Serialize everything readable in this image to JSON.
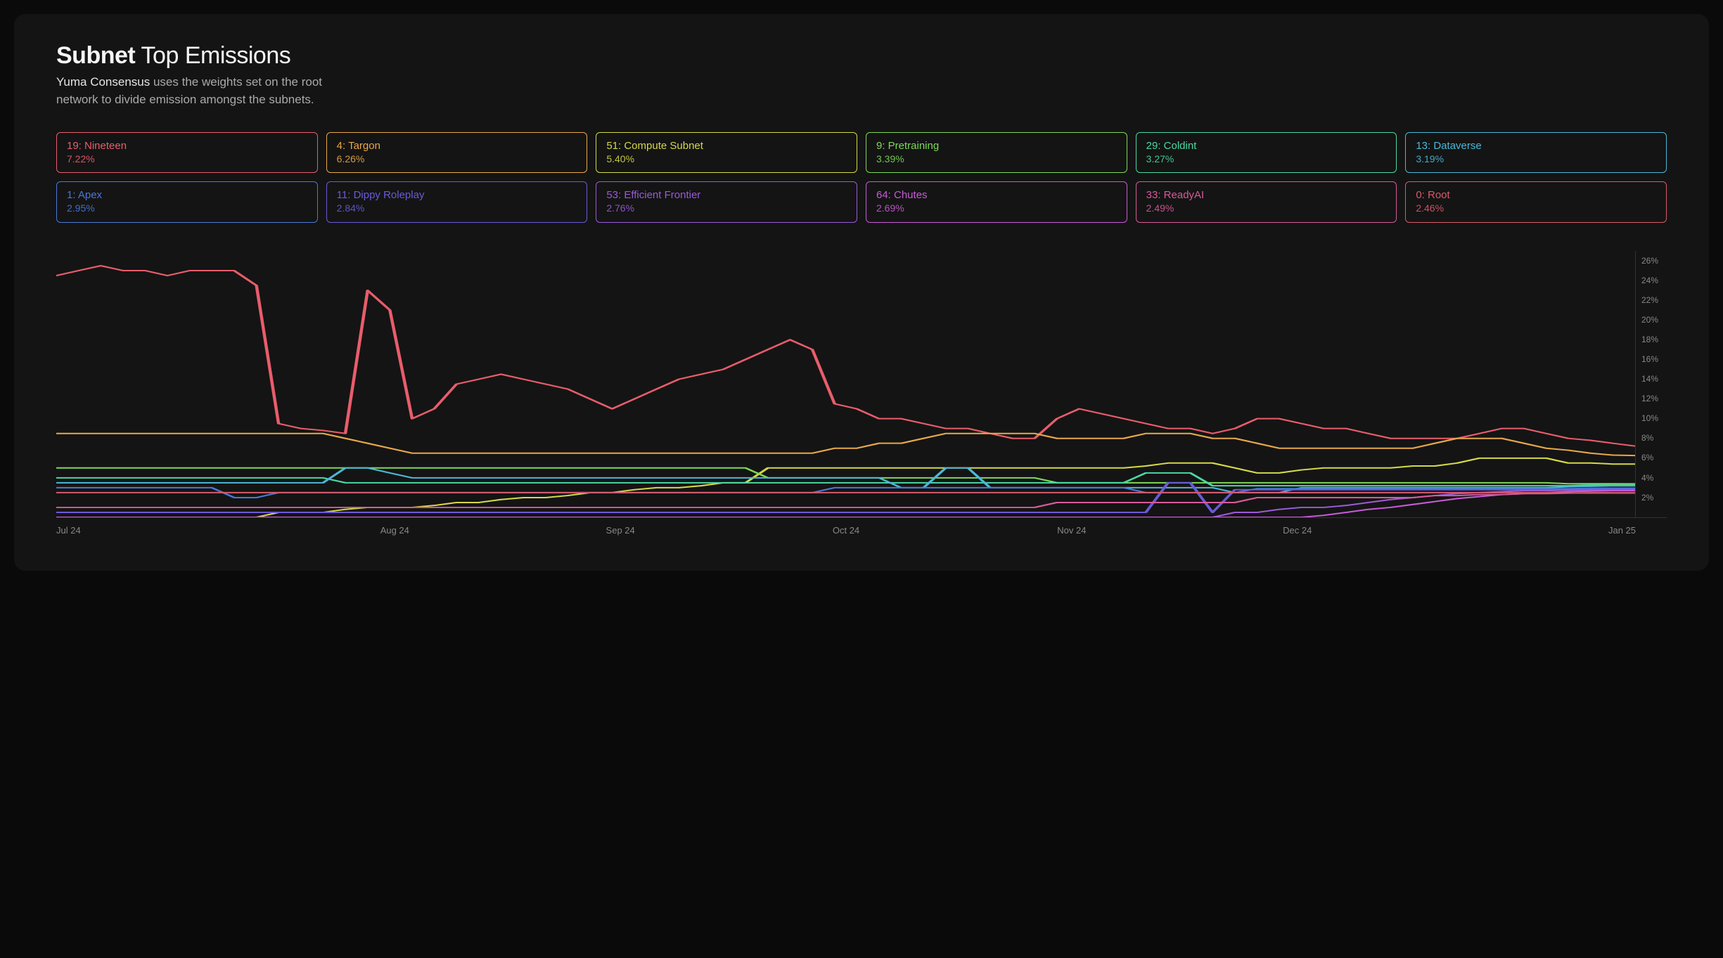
{
  "header": {
    "title_bold": "Subnet",
    "title_light": " Top Emissions",
    "subtitle_strong": "Yuma Consensus",
    "subtitle_rest": " uses the weights set on the root network to divide emission amongst the subnets."
  },
  "chart": {
    "type": "line",
    "background_color": "#141414",
    "ylim": [
      0,
      27
    ],
    "y_ticks": [
      "26%",
      "24%",
      "22%",
      "20%",
      "18%",
      "16%",
      "14%",
      "12%",
      "10%",
      "8%",
      "6%",
      "4%",
      "2%"
    ],
    "y_tick_values": [
      26,
      24,
      22,
      20,
      18,
      16,
      14,
      12,
      10,
      8,
      6,
      4,
      2
    ],
    "x_ticks": [
      "Jul 24",
      "Aug 24",
      "Sep 24",
      "Oct 24",
      "Nov 24",
      "Dec 24",
      "Jan 25"
    ],
    "grid_color": "#333333",
    "series": [
      {
        "id": "19",
        "name": "19: Nineteen",
        "percent": "7.22%",
        "color": "#e85d6b",
        "values": [
          24.5,
          25,
          25.5,
          25,
          25,
          24.5,
          25,
          25,
          25,
          23.5,
          9.5,
          9,
          8.8,
          8.5,
          23,
          21,
          10,
          11,
          13.5,
          14,
          14.5,
          14,
          13.5,
          13,
          12,
          11,
          12,
          13,
          14,
          14.5,
          15,
          16,
          17,
          18,
          17,
          11.5,
          11,
          10,
          10,
          9.5,
          9,
          9,
          8.5,
          8,
          8,
          10,
          11,
          10.5,
          10,
          9.5,
          9,
          9,
          8.5,
          9,
          10,
          10,
          9.5,
          9,
          9,
          8.5,
          8,
          8,
          8,
          8,
          8.5,
          9,
          9,
          8.5,
          8,
          7.8,
          7.5,
          7.22
        ]
      },
      {
        "id": "4",
        "name": "4: Targon",
        "percent": "6.26%",
        "color": "#e8a84a",
        "values": [
          8.5,
          8.5,
          8.5,
          8.5,
          8.5,
          8.5,
          8.5,
          8.5,
          8.5,
          8.5,
          8.5,
          8.5,
          8.5,
          8,
          7.5,
          7,
          6.5,
          6.5,
          6.5,
          6.5,
          6.5,
          6.5,
          6.5,
          6.5,
          6.5,
          6.5,
          6.5,
          6.5,
          6.5,
          6.5,
          6.5,
          6.5,
          6.5,
          6.5,
          6.5,
          7,
          7,
          7.5,
          7.5,
          8,
          8.5,
          8.5,
          8.5,
          8.5,
          8.5,
          8,
          8,
          8,
          8,
          8.5,
          8.5,
          8.5,
          8,
          8,
          7.5,
          7,
          7,
          7,
          7,
          7,
          7,
          7,
          7.5,
          8,
          8,
          8,
          7.5,
          7,
          6.8,
          6.5,
          6.3,
          6.26
        ]
      },
      {
        "id": "51",
        "name": "51: Compute Subnet",
        "percent": "5.40%",
        "color": "#d4d848",
        "values": [
          0,
          0,
          0,
          0,
          0,
          0,
          0,
          0,
          0,
          0,
          0.5,
          0.5,
          0.5,
          0.8,
          1,
          1,
          1,
          1.2,
          1.5,
          1.5,
          1.8,
          2,
          2,
          2.2,
          2.5,
          2.5,
          2.8,
          3,
          3,
          3.2,
          3.5,
          3.5,
          5,
          5,
          5,
          5,
          5,
          5,
          5,
          5,
          5,
          5,
          5,
          5,
          5,
          5,
          5,
          5,
          5,
          5.2,
          5.5,
          5.5,
          5.5,
          5,
          4.5,
          4.5,
          4.8,
          5,
          5,
          5,
          5,
          5.2,
          5.2,
          5.5,
          6,
          6,
          6,
          6,
          5.5,
          5.5,
          5.4,
          5.4
        ]
      },
      {
        "id": "9",
        "name": "9: Pretraining",
        "percent": "3.39%",
        "color": "#7dd858",
        "values": [
          5,
          5,
          5,
          5,
          5,
          5,
          5,
          5,
          5,
          5,
          5,
          5,
          5,
          5,
          5,
          5,
          5,
          5,
          5,
          5,
          5,
          5,
          5,
          5,
          5,
          5,
          5,
          5,
          5,
          5,
          5,
          5,
          4,
          4,
          4,
          4,
          4,
          4,
          4,
          4,
          4,
          4,
          4,
          4,
          4,
          3.5,
          3.5,
          3.5,
          3.5,
          3.5,
          3.5,
          3.5,
          3.5,
          3.5,
          3.5,
          3.5,
          3.5,
          3.5,
          3.5,
          3.5,
          3.5,
          3.5,
          3.5,
          3.5,
          3.5,
          3.5,
          3.5,
          3.5,
          3.4,
          3.4,
          3.4,
          3.39
        ]
      },
      {
        "id": "29",
        "name": "29: Coldint",
        "percent": "3.27%",
        "color": "#4ad8a4",
        "values": [
          4,
          4,
          4,
          4,
          4,
          4,
          4,
          4,
          4,
          4,
          4,
          4,
          4,
          3.5,
          3.5,
          3.5,
          3.5,
          3.5,
          3.5,
          3.5,
          3.5,
          3.5,
          3.5,
          3.5,
          3.5,
          3.5,
          3.5,
          3.5,
          3.5,
          3.5,
          3.5,
          3.5,
          3.5,
          3.5,
          3.5,
          3.5,
          3.5,
          3.5,
          3.5,
          3.5,
          3.5,
          3.5,
          3.5,
          3.5,
          3.5,
          3.5,
          3.5,
          3.5,
          3.5,
          4.5,
          4.5,
          4.5,
          3.2,
          3.2,
          3.2,
          3.2,
          3.2,
          3.2,
          3.2,
          3.2,
          3.2,
          3.2,
          3.2,
          3.2,
          3.2,
          3.2,
          3.2,
          3.2,
          3.2,
          3.27,
          3.27,
          3.27
        ]
      },
      {
        "id": "13",
        "name": "13: Dataverse",
        "percent": "3.19%",
        "color": "#4ab8d8",
        "values": [
          3.5,
          3.5,
          3.5,
          3.5,
          3.5,
          3.5,
          3.5,
          3.5,
          3.5,
          3.5,
          3.5,
          3.5,
          3.5,
          5,
          5,
          4.5,
          4,
          4,
          4,
          4,
          4,
          4,
          4,
          4,
          4,
          4,
          4,
          4,
          4,
          4,
          4,
          4,
          4,
          4,
          4,
          4,
          4,
          4,
          3,
          3,
          5,
          5,
          3,
          3,
          3,
          3,
          3,
          3,
          3,
          3,
          3,
          3,
          3,
          2.5,
          2.5,
          2.5,
          3,
          3,
          3,
          3,
          3,
          3,
          3,
          3,
          3,
          3,
          3,
          3,
          3.1,
          3.15,
          3.19,
          3.19
        ]
      },
      {
        "id": "1",
        "name": "1: Apex",
        "percent": "2.95%",
        "color": "#4a78d8",
        "values": [
          3,
          3,
          3,
          3,
          3,
          3,
          3,
          3,
          2,
          2,
          2.5,
          2.5,
          2.5,
          2.5,
          2.5,
          2.5,
          2.5,
          2.5,
          2.5,
          2.5,
          2.5,
          2.5,
          2.5,
          2.5,
          2.5,
          2.5,
          2.5,
          2.5,
          2.5,
          2.5,
          2.5,
          2.5,
          2.5,
          2.5,
          2.5,
          3,
          3,
          3,
          3,
          3,
          3,
          3,
          3,
          3,
          3,
          3,
          3,
          3,
          3,
          2.5,
          2.5,
          2.5,
          2.5,
          2.5,
          2.9,
          2.9,
          2.9,
          2.9,
          2.9,
          2.9,
          2.9,
          2.9,
          2.9,
          2.9,
          2.9,
          2.9,
          2.9,
          2.9,
          2.9,
          2.95,
          2.95,
          2.95
        ]
      },
      {
        "id": "11",
        "name": "11: Dippy Roleplay",
        "percent": "2.84%",
        "color": "#6a5ad8",
        "values": [
          0.5,
          0.5,
          0.5,
          0.5,
          0.5,
          0.5,
          0.5,
          0.5,
          0.5,
          0.5,
          0.5,
          0.5,
          0.5,
          0.5,
          0.5,
          0.5,
          0.5,
          0.5,
          0.5,
          0.5,
          0.5,
          0.5,
          0.5,
          0.5,
          0.5,
          0.5,
          0.5,
          0.5,
          0.5,
          0.5,
          0.5,
          0.5,
          0.5,
          0.5,
          0.5,
          0.5,
          0.5,
          0.5,
          0.5,
          0.5,
          0.5,
          0.5,
          0.5,
          0.5,
          0.5,
          0.5,
          0.5,
          0.5,
          0.5,
          0.5,
          3.5,
          3.5,
          0.5,
          2.8,
          2.8,
          2.8,
          2.8,
          2.8,
          2.8,
          2.8,
          2.8,
          2.8,
          2.8,
          2.8,
          2.8,
          2.8,
          2.8,
          2.8,
          2.8,
          2.84,
          2.84,
          2.84
        ]
      },
      {
        "id": "53",
        "name": "53: Efficient Frontier",
        "percent": "2.76%",
        "color": "#9a5ad8",
        "values": [
          0,
          0,
          0,
          0,
          0,
          0,
          0,
          0,
          0,
          0,
          0,
          0,
          0,
          0,
          0,
          0,
          0,
          0,
          0,
          0,
          0,
          0,
          0,
          0,
          0,
          0,
          0,
          0,
          0,
          0,
          0,
          0,
          0,
          0,
          0,
          0,
          0,
          0,
          0,
          0,
          0,
          0,
          0,
          0,
          0,
          0,
          0,
          0,
          0,
          0,
          0,
          0,
          0,
          0.5,
          0.5,
          0.8,
          1,
          1,
          1.2,
          1.5,
          1.8,
          2,
          2.2,
          2.4,
          2.5,
          2.6,
          2.7,
          2.7,
          2.75,
          2.76,
          2.76,
          2.76
        ]
      },
      {
        "id": "64",
        "name": "64: Chutes",
        "percent": "2.69%",
        "color": "#c85ad8",
        "values": [
          0,
          0,
          0,
          0,
          0,
          0,
          0,
          0,
          0,
          0,
          0,
          0,
          0,
          0,
          0,
          0,
          0,
          0,
          0,
          0,
          0,
          0,
          0,
          0,
          0,
          0,
          0,
          0,
          0,
          0,
          0,
          0,
          0,
          0,
          0,
          0,
          0,
          0,
          0,
          0,
          0,
          0,
          0,
          0,
          0,
          0,
          0,
          0,
          0,
          0,
          0,
          0,
          0,
          0,
          0,
          0,
          0,
          0.2,
          0.5,
          0.8,
          1,
          1.3,
          1.6,
          1.9,
          2.1,
          2.3,
          2.4,
          2.5,
          2.6,
          2.65,
          2.69,
          2.69
        ]
      },
      {
        "id": "33",
        "name": "33: ReadyAI",
        "percent": "2.49%",
        "color": "#d85a9a",
        "values": [
          1,
          1,
          1,
          1,
          1,
          1,
          1,
          1,
          1,
          1,
          1,
          1,
          1,
          1,
          1,
          1,
          1,
          1,
          1,
          1,
          1,
          1,
          1,
          1,
          1,
          1,
          1,
          1,
          1,
          1,
          1,
          1,
          1,
          1,
          1,
          1,
          1,
          1,
          1,
          1,
          1,
          1,
          1,
          1,
          1,
          1.5,
          1.5,
          1.5,
          1.5,
          1.5,
          1.5,
          1.5,
          1.5,
          1.5,
          2,
          2,
          2,
          2,
          2,
          2,
          2,
          2,
          2.2,
          2.2,
          2.3,
          2.3,
          2.4,
          2.4,
          2.45,
          2.49,
          2.49,
          2.49
        ]
      },
      {
        "id": "0",
        "name": "0: Root",
        "percent": "2.46%",
        "color": "#d85a6a",
        "values": [
          2.5,
          2.5,
          2.5,
          2.5,
          2.5,
          2.5,
          2.5,
          2.5,
          2.5,
          2.5,
          2.5,
          2.5,
          2.5,
          2.5,
          2.5,
          2.5,
          2.5,
          2.5,
          2.5,
          2.5,
          2.5,
          2.5,
          2.5,
          2.5,
          2.5,
          2.5,
          2.5,
          2.5,
          2.5,
          2.5,
          2.5,
          2.5,
          2.5,
          2.5,
          2.5,
          2.5,
          2.5,
          2.5,
          2.5,
          2.5,
          2.5,
          2.5,
          2.5,
          2.5,
          2.5,
          2.5,
          2.5,
          2.5,
          2.5,
          2.5,
          2.5,
          2.5,
          2.5,
          2.5,
          2.5,
          2.5,
          2.5,
          2.5,
          2.5,
          2.5,
          2.5,
          2.5,
          2.5,
          2.5,
          2.5,
          2.5,
          2.5,
          2.5,
          2.46,
          2.46,
          2.46,
          2.46
        ]
      }
    ]
  }
}
